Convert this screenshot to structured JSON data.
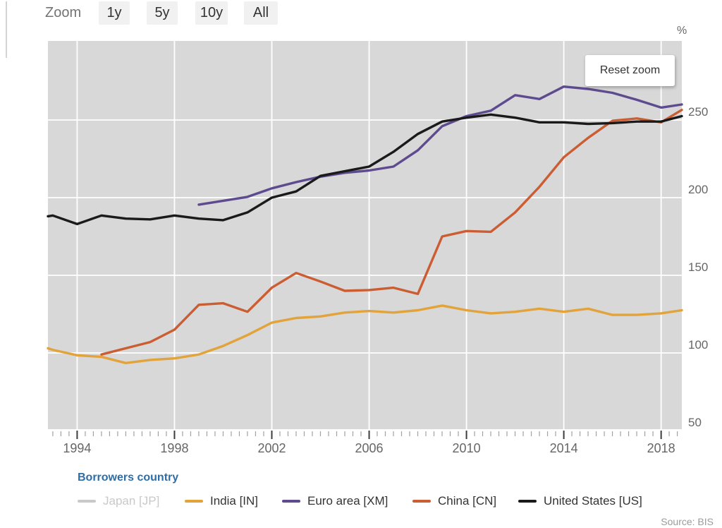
{
  "toolbar": {
    "zoom_label": "Zoom",
    "buttons": [
      {
        "label": "1y"
      },
      {
        "label": "5y"
      },
      {
        "label": "10y"
      },
      {
        "label": "All"
      }
    ]
  },
  "reset_zoom_label": "Reset zoom",
  "y_axis_unit": "%",
  "legend": {
    "title": "Borrowers country",
    "items": [
      {
        "label": "Japan [JP]",
        "color": "#c9c9c9",
        "disabled": true
      },
      {
        "label": "India [IN]",
        "color": "#e2a33a",
        "disabled": false
      },
      {
        "label": "Euro area [XM]",
        "color": "#5e4b8f",
        "disabled": false
      },
      {
        "label": "China [CN]",
        "color": "#cb5d33",
        "disabled": false
      },
      {
        "label": "United States [US]",
        "color": "#1a1a1a",
        "disabled": false
      }
    ]
  },
  "source_text": "Source: BIS",
  "chart_data": {
    "type": "line",
    "title": "",
    "xlabel": "",
    "ylabel": "%",
    "grid": true,
    "legend_position": "bottom",
    "x_range": [
      1992.8,
      2018.85
    ],
    "y_range": [
      50,
      300
    ],
    "x_tick_labels": [
      1994,
      1998,
      2002,
      2006,
      2010,
      2014,
      2018
    ],
    "y_tick_labels": [
      50,
      100,
      150,
      200,
      250
    ],
    "minor_tick_step_years": 0.3333,
    "series": [
      {
        "name": "Japan [JP]",
        "color": "#c9c9c9",
        "visible": false,
        "x": [],
        "values": []
      },
      {
        "name": "India [IN]",
        "color": "#e2a33a",
        "visible": true,
        "x": [
          1992.8,
          1993,
          1994,
          1995,
          1996,
          1997,
          1998,
          1999,
          2000,
          2001,
          2002,
          2003,
          2004,
          2005,
          2006,
          2007,
          2008,
          2009,
          2010,
          2011,
          2012,
          2013,
          2014,
          2015,
          2016,
          2017,
          2018,
          2018.85
        ],
        "values": [
          103,
          102,
          98.5,
          97.5,
          93.5,
          95.5,
          96.5,
          99,
          104.5,
          111.5,
          119.5,
          122.5,
          123.5,
          126,
          127,
          126,
          127.5,
          130.5,
          127.5,
          125.5,
          126.5,
          128.5,
          126.5,
          128.5,
          124.5,
          124.5,
          125.5,
          127.5
        ]
      },
      {
        "name": "Euro area [XM]",
        "color": "#5e4b8f",
        "visible": true,
        "x": [
          1999,
          2000,
          2001,
          2002,
          2003,
          2004,
          2005,
          2006,
          2007,
          2008,
          2009,
          2010,
          2011,
          2012,
          2013,
          2014,
          2015,
          2016,
          2017,
          2018,
          2018.85
        ],
        "values": [
          195.5,
          198,
          200.5,
          206,
          210,
          213.5,
          216,
          217.5,
          220,
          230.5,
          246,
          252.5,
          256,
          266,
          263.5,
          271.5,
          270,
          267.5,
          263,
          258,
          260
        ]
      },
      {
        "name": "China [CN]",
        "color": "#cb5d33",
        "visible": true,
        "x": [
          1995,
          1996,
          1997,
          1998,
          1999,
          2000,
          2001,
          2002,
          2003,
          2004,
          2005,
          2006,
          2007,
          2008,
          2009,
          2010,
          2011,
          2012,
          2013,
          2014,
          2015,
          2016,
          2017,
          2018,
          2018.85
        ],
        "values": [
          99,
          103,
          107,
          115,
          131,
          132,
          126.5,
          142,
          151.5,
          146,
          140,
          140.5,
          142,
          138,
          175,
          178.5,
          178,
          190.5,
          207,
          226,
          238.5,
          249.5,
          251,
          248.5,
          256.5
        ]
      },
      {
        "name": "United States [US]",
        "color": "#1a1a1a",
        "visible": true,
        "x": [
          1992.8,
          1993,
          1994,
          1995,
          1996,
          1997,
          1998,
          1999,
          2000,
          2001,
          2002,
          2003,
          2004,
          2005,
          2006,
          2007,
          2008,
          2009,
          2010,
          2011,
          2012,
          2013,
          2014,
          2015,
          2016,
          2017,
          2018,
          2018.85
        ],
        "values": [
          188,
          188.5,
          183,
          188.5,
          186.5,
          186,
          188.5,
          186.5,
          185.5,
          190.5,
          200,
          204,
          214,
          217,
          220,
          229.5,
          241,
          249,
          251.5,
          253.5,
          251.5,
          248.5,
          248.5,
          247.5,
          248,
          249,
          249,
          252.5
        ]
      }
    ]
  }
}
